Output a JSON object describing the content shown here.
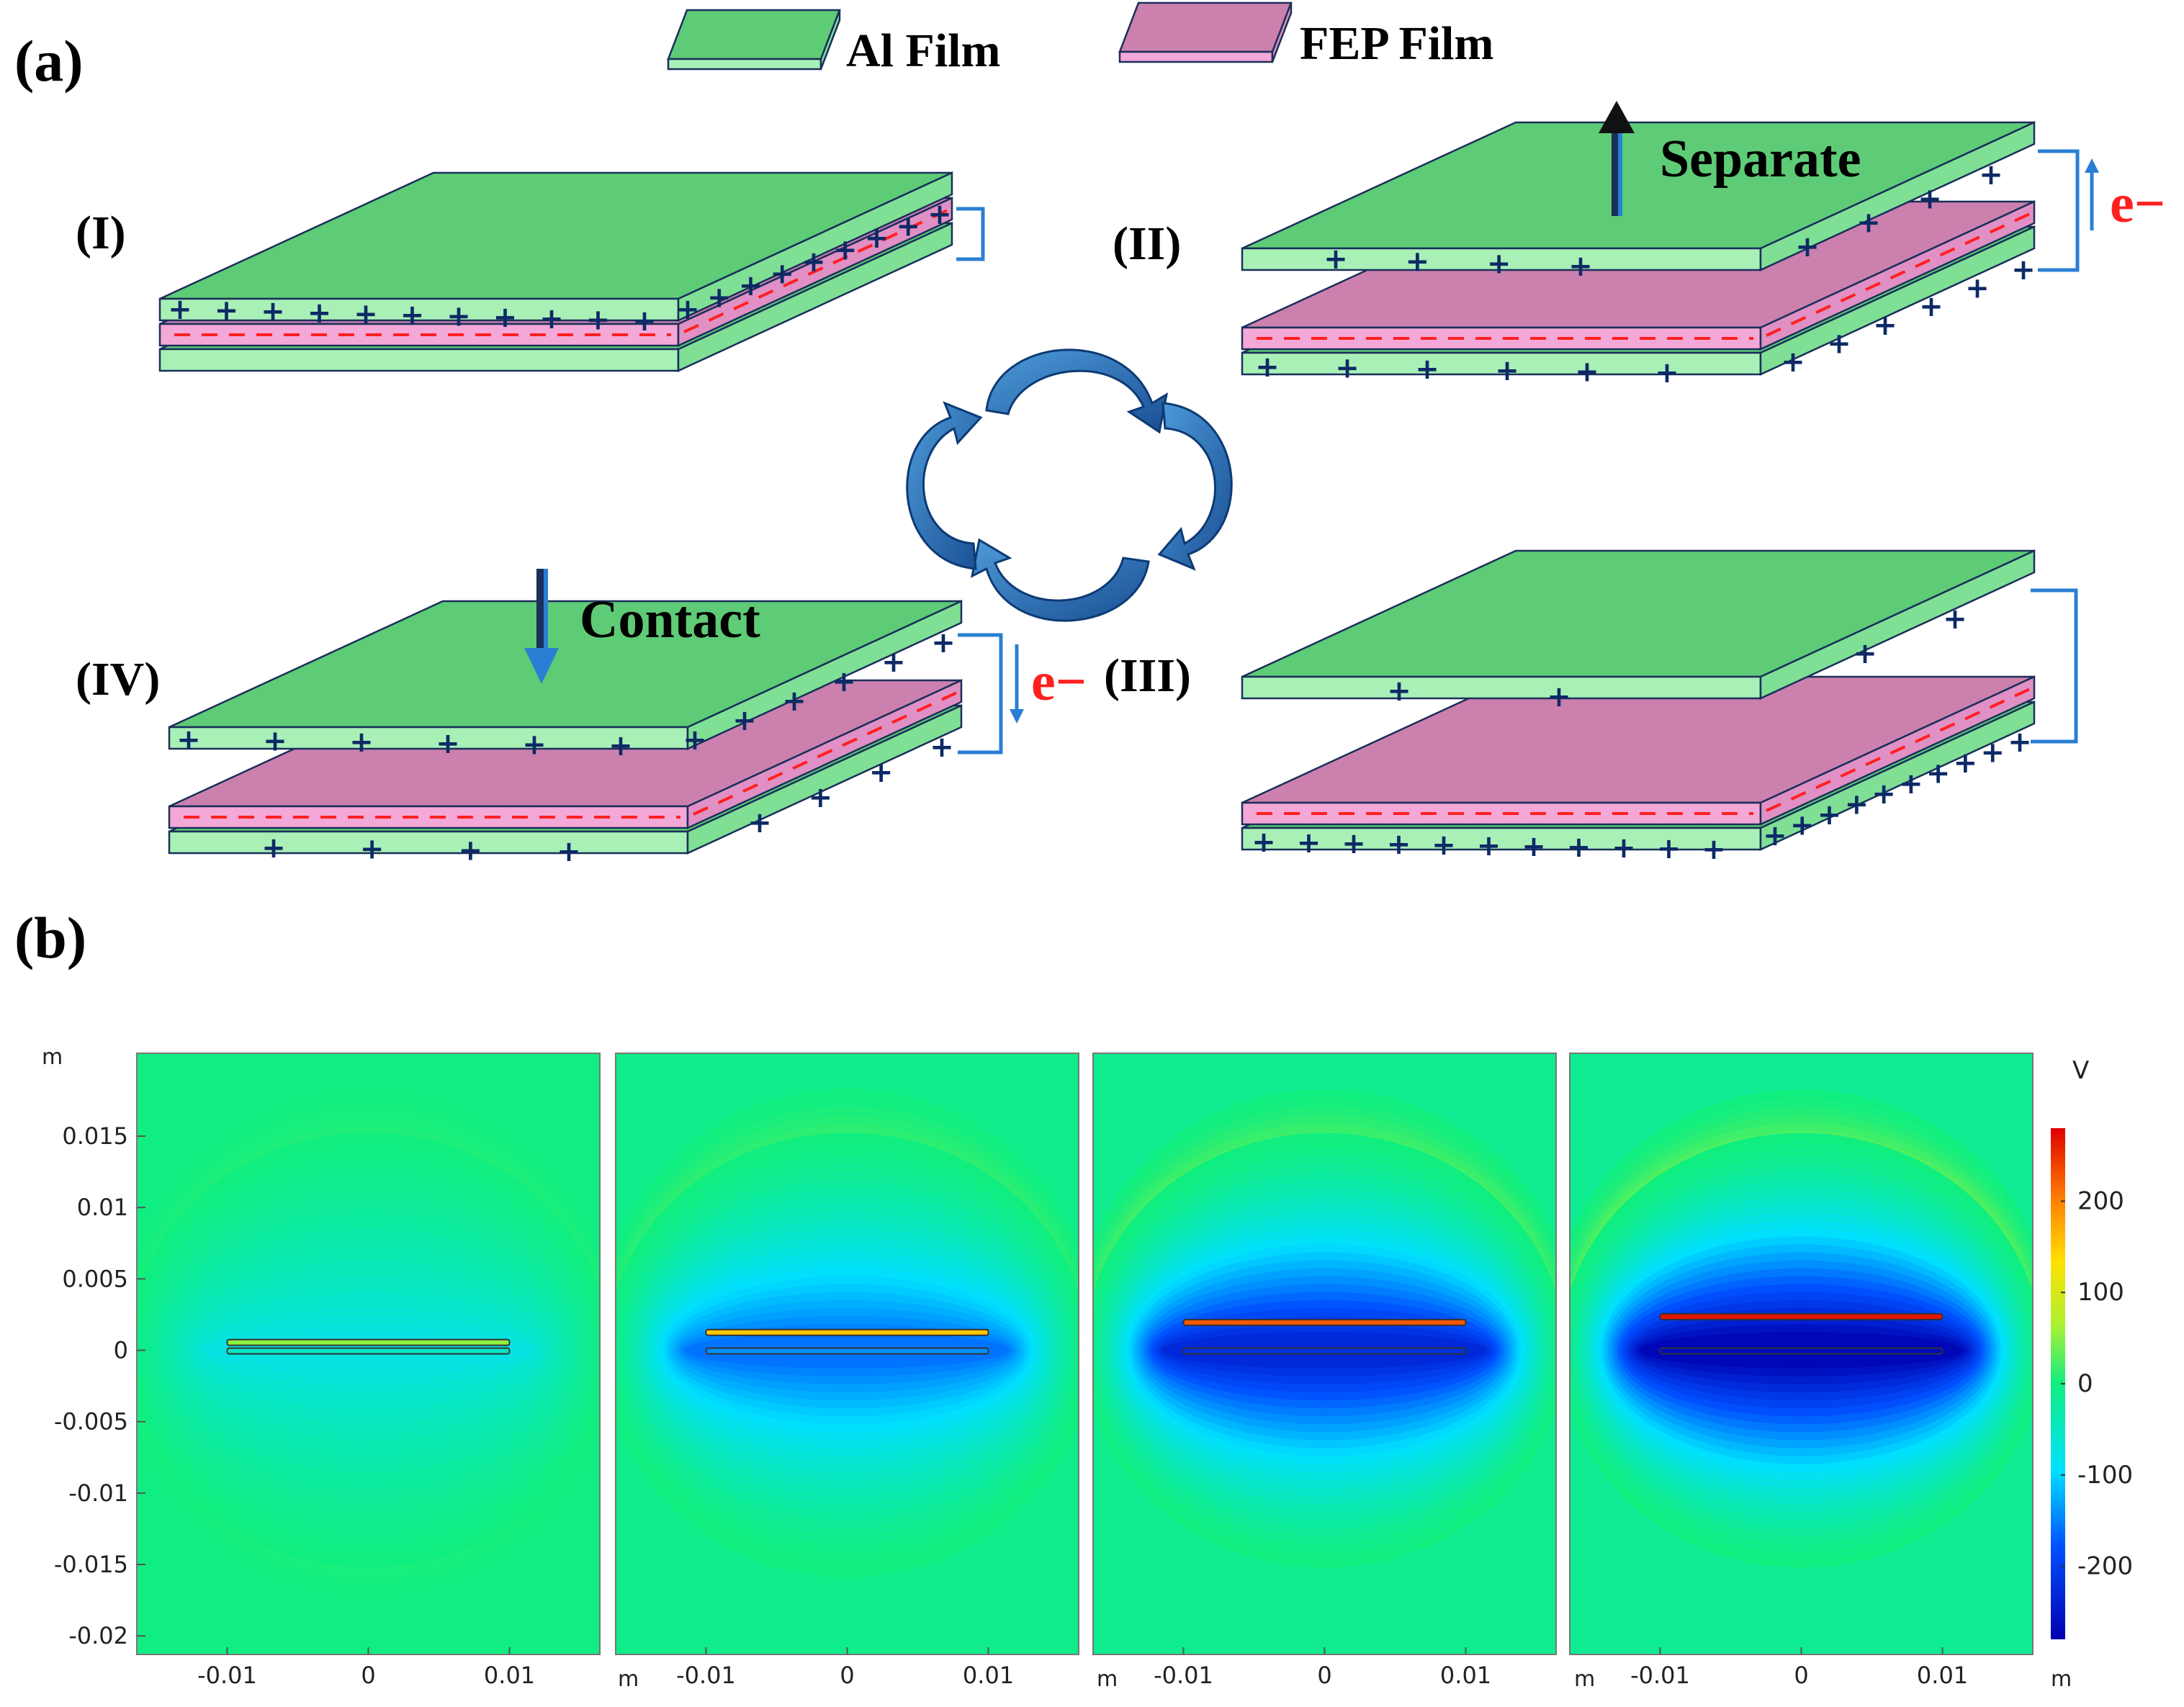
{
  "panel_a": {
    "label": "(a)",
    "legend": {
      "al_film": "Al Film",
      "fep_film": "FEP Film"
    },
    "stages": {
      "stage_1": {
        "label": "(I)"
      },
      "stage_2": {
        "label": "(II)",
        "action": "Separate",
        "electron": "e−"
      },
      "stage_3": {
        "label": "(III)"
      },
      "stage_4": {
        "label": "(IV)",
        "action": "Contact",
        "electron": "e−"
      }
    },
    "symbols": {
      "plus": "+",
      "minus": "−"
    }
  },
  "panel_b": {
    "label": "(b)",
    "unit_label": "m",
    "x_ticks": [
      "-0.01",
      "0",
      "0.01"
    ],
    "y_ticks": [
      "0.015",
      "0.01",
      "0.005",
      "0",
      "-0.005",
      "-0.01",
      "-0.015",
      "-0.02"
    ],
    "colorbar": {
      "unit": "V",
      "ticks": [
        "200",
        "100",
        "0",
        "-100",
        "-200"
      ]
    },
    "plots": [
      {
        "separation_mm": 0.5,
        "potential_max": 50
      },
      {
        "separation_mm": 1.2,
        "potential_max": 150
      },
      {
        "separation_mm": 1.9,
        "potential_max": 230
      },
      {
        "separation_mm": 2.3,
        "potential_max": 280
      }
    ]
  },
  "colors": {
    "al_top": "#5ecb76",
    "al_front": "#a8f0b6",
    "al_side": "#7fe095",
    "fep_top": "#cc80ae",
    "fep_front": "#f4a8d8",
    "fep_side": "#e090c4",
    "edge": "#1a2f5a",
    "plus": "#0d2a66",
    "minus": "#ff2020",
    "wire": "#2a7fd4",
    "electron": "#ff2020",
    "cycle_arrow": "#1f5fa8"
  }
}
